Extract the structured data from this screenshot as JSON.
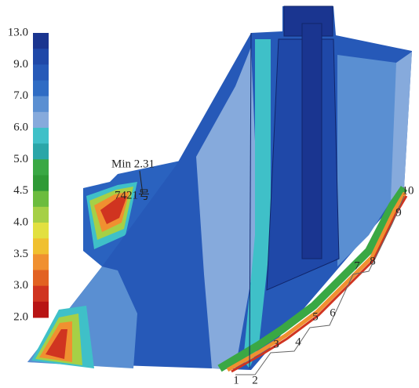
{
  "colorbar": {
    "labels": [
      "13.0",
      "9.0",
      "7.0",
      "6.0",
      "5.0",
      "4.5",
      "4.0",
      "3.5",
      "3.0",
      "2.0"
    ],
    "colors": [
      "#1a3590",
      "#1f48a8",
      "#2659b8",
      "#2f6cc4",
      "#5a8fd2",
      "#86aadc",
      "#3fc0c8",
      "#2aa6a8",
      "#3aa844",
      "#2f9a36",
      "#6cbc3e",
      "#a6d046",
      "#e2e040",
      "#f0c030",
      "#f09030",
      "#e26222",
      "#d03420",
      "#b81414"
    ]
  },
  "annotations": {
    "min_label": "Min 2.31",
    "element": "7421号"
  },
  "sections": [
    "1",
    "2",
    "3",
    "4",
    "5",
    "6",
    "7",
    "8",
    "9",
    "10"
  ]
}
